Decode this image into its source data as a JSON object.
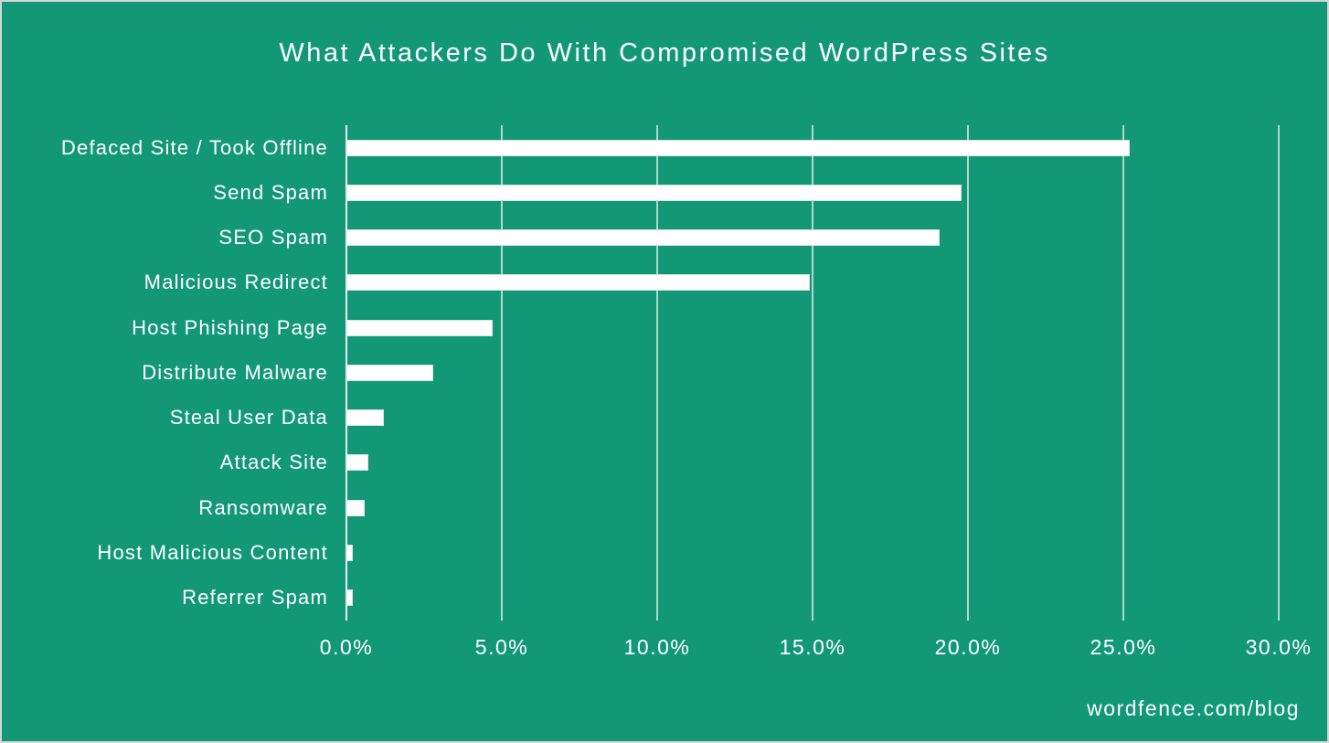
{
  "chart_data": {
    "type": "bar",
    "orientation": "horizontal",
    "title": "What Attackers Do With Compromised WordPress Sites",
    "categories": [
      "Defaced Site / Took Offline",
      "Send Spam",
      "SEO Spam",
      "Malicious Redirect",
      "Host Phishing Page",
      "Distribute Malware",
      "Steal User Data",
      "Attack Site",
      "Ransomware",
      "Host Malicious Content",
      "Referrer Spam"
    ],
    "values": [
      25.2,
      19.8,
      19.1,
      14.9,
      4.7,
      2.8,
      1.2,
      0.7,
      0.6,
      0.2,
      0.2
    ],
    "value_unit": "%",
    "xlabel": "",
    "ylabel": "",
    "xlim": [
      0,
      30
    ],
    "x_ticks": [
      "0.0%",
      "5.0%",
      "10.0%",
      "15.0%",
      "20.0%",
      "25.0%",
      "30.0%"
    ],
    "x_tick_values": [
      0,
      5,
      10,
      15,
      20,
      25,
      30
    ],
    "grid": true,
    "legend": false,
    "bar_color": "#ffffff",
    "background_color": "#129877",
    "text_color": "#ffffff",
    "gridline_color": "#cfe0db"
  },
  "footer": {
    "source_label": "wordfence.com/blog"
  }
}
